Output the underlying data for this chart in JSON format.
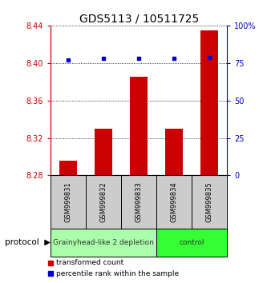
{
  "title": "GDS5113 / 10511725",
  "samples": [
    "GSM999831",
    "GSM999832",
    "GSM999833",
    "GSM999834",
    "GSM999835"
  ],
  "red_values": [
    8.296,
    8.33,
    8.385,
    8.33,
    8.435
  ],
  "blue_values": [
    77.0,
    78.0,
    78.0,
    78.0,
    78.5
  ],
  "ylim_left": [
    8.28,
    8.44
  ],
  "ylim_right": [
    0,
    100
  ],
  "yticks_left": [
    8.28,
    8.32,
    8.36,
    8.4,
    8.44
  ],
  "yticks_right": [
    0,
    25,
    50,
    75,
    100
  ],
  "ytick_labels_right": [
    "0",
    "25",
    "50",
    "75",
    "100%"
  ],
  "groups": [
    {
      "label": "Grainyhead-like 2 depletion",
      "samples": [
        0,
        1,
        2
      ],
      "color": "#aaffaa"
    },
    {
      "label": "control",
      "samples": [
        3,
        4
      ],
      "color": "#33ff33"
    }
  ],
  "bar_color": "#cc0000",
  "dot_color": "#0000cc",
  "bar_width": 0.5,
  "protocol_label": "protocol",
  "legend_red": "transformed count",
  "legend_blue": "percentile rank within the sample",
  "background_color": "#ffffff",
  "grid_color": "#000000",
  "left_axis_color": "#cc0000",
  "right_axis_color": "#0000cc",
  "sample_bg": "#cccccc",
  "group1_color": "#aaffaa",
  "group2_color": "#33ff33"
}
